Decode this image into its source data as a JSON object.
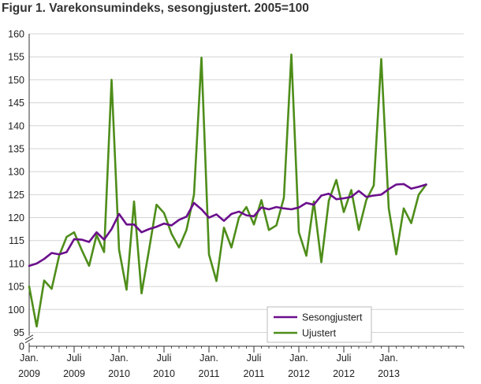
{
  "chart_data": {
    "type": "line",
    "title": "Figur 1. Varekonsumindeks, sesongjustert. 2005=100",
    "xlabel": "",
    "ylabel": "",
    "y_ticks": [
      "0",
      "95",
      "100",
      "105",
      "110",
      "115",
      "120",
      "125",
      "130",
      "135",
      "140",
      "145",
      "150",
      "155",
      "160"
    ],
    "y_tick_values": [
      92,
      95,
      100,
      105,
      110,
      115,
      120,
      125,
      130,
      135,
      140,
      145,
      150,
      155,
      160
    ],
    "ylim_display": [
      92,
      160
    ],
    "axis_break": true,
    "x_ticks": [
      {
        "i": 0,
        "line1": "Jan.",
        "line2": "2009"
      },
      {
        "i": 6,
        "line1": "Juli",
        "line2": "2009"
      },
      {
        "i": 12,
        "line1": "Jan.",
        "line2": "2010"
      },
      {
        "i": 18,
        "line1": "Juli",
        "line2": "2010"
      },
      {
        "i": 24,
        "line1": "Jan.",
        "line2": "2011"
      },
      {
        "i": 30,
        "line1": "Juli",
        "line2": "2011"
      },
      {
        "i": 36,
        "line1": "Jan.",
        "line2": "2012"
      },
      {
        "i": 42,
        "line1": "Juli",
        "line2": "2012"
      },
      {
        "i": 48,
        "line1": "Jan.",
        "line2": "2013"
      }
    ],
    "x_count": 59,
    "grid": true,
    "legend_position": "bottom-right",
    "series": [
      {
        "name": "Sesongjustert",
        "color": "#6b0f8c",
        "values": [
          109.5,
          110.0,
          111.0,
          112.3,
          112.0,
          112.5,
          115.3,
          115.2,
          114.7,
          116.8,
          115.2,
          117.5,
          120.8,
          118.5,
          118.5,
          116.8,
          117.5,
          118.0,
          118.7,
          118.3,
          119.5,
          120.2,
          123.2,
          121.8,
          120.0,
          120.7,
          119.3,
          120.8,
          121.3,
          120.5,
          120.3,
          122.2,
          121.8,
          122.3,
          122.0,
          121.8,
          122.2,
          123.2,
          122.8,
          124.8,
          125.2,
          124.0,
          124.2,
          124.5,
          125.8,
          124.5,
          124.8,
          125.0,
          126.2,
          127.2,
          127.3,
          126.3,
          126.7,
          127.2
        ]
      },
      {
        "name": "Ujustert",
        "color": "#4e8d1a",
        "values": [
          105.0,
          96.3,
          106.3,
          104.5,
          111.7,
          115.8,
          116.8,
          113.0,
          109.5,
          116.2,
          112.5,
          150.0,
          113.0,
          104.3,
          123.5,
          103.5,
          113.0,
          122.8,
          121.0,
          116.5,
          113.5,
          117.3,
          125.0,
          154.8,
          112.0,
          106.2,
          117.8,
          113.5,
          120.0,
          122.3,
          118.5,
          123.8,
          117.3,
          118.3,
          124.3,
          155.5,
          116.8,
          111.7,
          123.5,
          110.3,
          123.7,
          128.2,
          121.2,
          126.0,
          117.3,
          123.8,
          127.0,
          154.5,
          122.0,
          112.0,
          122.0,
          118.8,
          125.0,
          127.2
        ]
      }
    ]
  }
}
